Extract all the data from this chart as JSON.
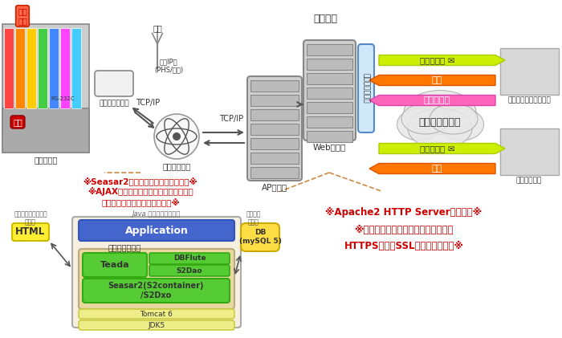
{
  "title": "弊社開発",
  "bg_color": "#ffffff",
  "left_note_lines": [
    "※Seasar2を核にしたフレームワーク※",
    "※AJAXによる開発を行い「見た目良い」",
    "ユーザーフロントエンドの実現※"
  ],
  "right_note_lines": [
    "※Apache2 HTTP Serverにて構築※",
    "※通信セキュリティの安全を図るため",
    "HTTPSによるSSL通信経路を確保※"
  ],
  "java_label": "Java ミドルウェア構成",
  "app_label": "Application",
  "framework_label": "フレームワーク",
  "teada_label": "Teada",
  "dbflute_label": "DBFlute",
  "s2dao_label": "S2Dao",
  "seasar_label": "Seasar2(S2container)\n/S2Dxo",
  "tomcat_label": "Tomcat 6",
  "jdk_label": "JDK5",
  "html_label": "HTML",
  "db_label": "DB\n(mySQL 5)",
  "presentation_label": "プレゼンテーション\nモデル",
  "domain_label": "ドメイン\nモデル",
  "web_server_label": "Webサーバ",
  "ap_server_label": "APサーバ",
  "frontend_label": "フロントエンド",
  "comm_center_label": "通信センター",
  "comm_module_label": "通信モジュール",
  "wireless_label": "無線",
  "wireless_ip_label": "無線IP網\n(PHS/携帯)",
  "vending_label": "飲料自販機",
  "rs232c_label": "RS-232C",
  "tcp_ip1_label": "TCP/IP",
  "tcp_ip2_label": "TCP/IP",
  "notify_mail1": "通知メール",
  "instruction1": "指示",
  "master_mgmt": "マスタ管理",
  "internet_label": "インターネット",
  "notify_mail2": "通知メール",
  "instruction2": "指示",
  "operator_label": "自販機オペレータ会社",
  "route_label": "ルート担当者",
  "soldout_label": "売り\n切れ",
  "failure_label": "故障"
}
